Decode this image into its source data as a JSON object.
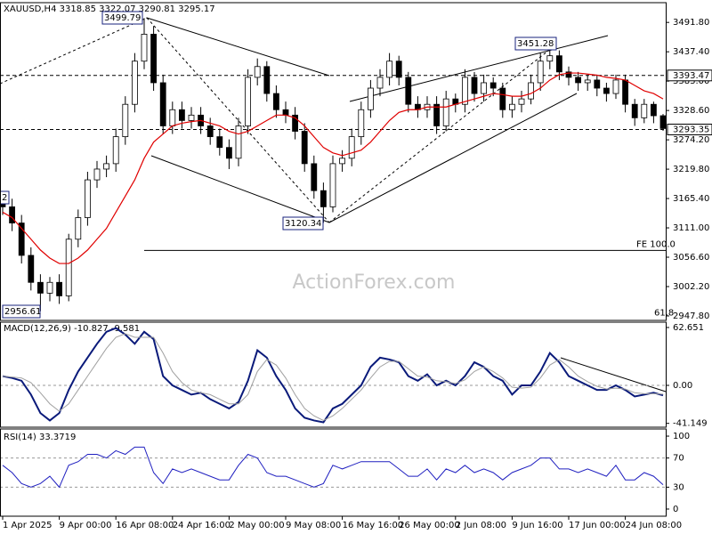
{
  "chart_data": [
    {
      "type": "candlestick",
      "title": "XAUUSD,H4  3318.85 3322.07 3290.81 3295.17",
      "watermark": "ActionForex.com",
      "categories": [
        "1 Apr 2025",
        null,
        null,
        null,
        null,
        null,
        "9 Apr 00:00",
        null,
        null,
        null,
        null,
        null,
        "16 Apr 08:00",
        null,
        null,
        null,
        null,
        null,
        "24 Apr 16:00",
        null,
        null,
        null,
        null,
        null,
        "2 May 00:00",
        null,
        null,
        null,
        null,
        null,
        "9 May 08:00",
        null,
        null,
        null,
        null,
        null,
        "16 May 16:00",
        null,
        null,
        null,
        null,
        null,
        "26 May 00:00",
        null,
        null,
        null,
        null,
        null,
        "2 Jun 08:00",
        null,
        null,
        null,
        null,
        null,
        "9 Jun 16:00",
        null,
        null,
        null,
        null,
        null,
        "17 Jun 00:00",
        null,
        null,
        null,
        null,
        null,
        "24 Jun 08:00",
        null,
        null,
        null,
        null
      ],
      "open": [
        3160,
        3150,
        3120,
        3060,
        3010,
        2990,
        3010,
        2985,
        3090,
        3130,
        3200,
        3220,
        3230,
        3280,
        3340,
        3420,
        3470,
        3380,
        3300,
        3330,
        3310,
        3320,
        3300,
        3280,
        3260,
        3240,
        3300,
        3390,
        3410,
        3360,
        3330,
        3320,
        3290,
        3230,
        3180,
        3150,
        3230,
        3240,
        3280,
        3330,
        3370,
        3390,
        3420,
        3390,
        3340,
        3330,
        3340,
        3300,
        3350,
        3340,
        3390,
        3360,
        3380,
        3370,
        3330,
        3340,
        3350,
        3380,
        3420,
        3430,
        3400,
        3390,
        3380,
        3385,
        3370,
        3360,
        3385,
        3340,
        3315,
        3340,
        3318.85
      ],
      "high": [
        3175,
        3165,
        3135,
        3075,
        3025,
        3020,
        3025,
        3100,
        3145,
        3215,
        3235,
        3245,
        3295,
        3355,
        3435,
        3499.79,
        3485,
        3395,
        3345,
        3345,
        3335,
        3335,
        3315,
        3295,
        3275,
        3315,
        3405,
        3425,
        3420,
        3375,
        3345,
        3335,
        3305,
        3245,
        3195,
        3245,
        3255,
        3295,
        3345,
        3385,
        3405,
        3435,
        3430,
        3400,
        3355,
        3355,
        3355,
        3365,
        3360,
        3405,
        3400,
        3395,
        3390,
        3380,
        3355,
        3365,
        3395,
        3435,
        3451.28,
        3440,
        3410,
        3400,
        3395,
        3395,
        3380,
        3395,
        3395,
        3350,
        3350,
        3345,
        3322.07
      ],
      "low": [
        3135,
        3105,
        3045,
        2995,
        2956.61,
        2975,
        2970,
        2975,
        3075,
        3115,
        3185,
        3205,
        3215,
        3265,
        3325,
        3405,
        3365,
        3285,
        3285,
        3295,
        3295,
        3285,
        3265,
        3245,
        3220,
        3225,
        3285,
        3375,
        3345,
        3315,
        3305,
        3275,
        3215,
        3165,
        3120.34,
        3140,
        3215,
        3225,
        3265,
        3315,
        3355,
        3375,
        3375,
        3325,
        3315,
        3315,
        3285,
        3290,
        3325,
        3325,
        3345,
        3345,
        3355,
        3315,
        3315,
        3325,
        3340,
        3365,
        3405,
        3385,
        3375,
        3365,
        3365,
        3355,
        3345,
        3350,
        3325,
        3300,
        3305,
        3305,
        3290.81
      ],
      "close": [
        3150,
        3120,
        3060,
        3010,
        2990,
        3010,
        2985,
        3090,
        3130,
        3200,
        3220,
        3230,
        3280,
        3340,
        3420,
        3470,
        3380,
        3300,
        3330,
        3310,
        3320,
        3300,
        3280,
        3260,
        3240,
        3300,
        3390,
        3410,
        3360,
        3330,
        3320,
        3290,
        3230,
        3180,
        3150,
        3230,
        3240,
        3280,
        3330,
        3370,
        3390,
        3420,
        3390,
        3340,
        3330,
        3340,
        3300,
        3350,
        3340,
        3390,
        3360,
        3380,
        3370,
        3330,
        3340,
        3350,
        3380,
        3420,
        3430,
        3400,
        3390,
        3380,
        3385,
        3370,
        3360,
        3385,
        3340,
        3315,
        3340,
        3318.85,
        3295.17
      ],
      "ma": {
        "color": "#e00000",
        "values": [
          3140,
          3130,
          3110,
          3090,
          3070,
          3055,
          3045,
          3045,
          3055,
          3070,
          3090,
          3110,
          3140,
          3170,
          3200,
          3240,
          3270,
          3285,
          3300,
          3305,
          3308,
          3310,
          3305,
          3300,
          3290,
          3285,
          3290,
          3300,
          3310,
          3320,
          3320,
          3315,
          3300,
          3280,
          3260,
          3250,
          3245,
          3250,
          3255,
          3270,
          3290,
          3310,
          3325,
          3330,
          3330,
          3335,
          3335,
          3335,
          3340,
          3345,
          3350,
          3355,
          3360,
          3358,
          3355,
          3355,
          3360,
          3370,
          3385,
          3395,
          3398,
          3398,
          3396,
          3394,
          3390,
          3388,
          3385,
          3375,
          3365,
          3360,
          3350
        ]
      },
      "ylim": [
        2939.5,
        3528.4
      ],
      "yticks": [
        {
          "value": 3491.8,
          "label": "3491.80"
        },
        {
          "value": 3437.4,
          "label": "3437.40"
        },
        {
          "value": 3383,
          "label": "3383.00"
        },
        {
          "value": 3328.6,
          "label": "3328.60"
        },
        {
          "value": 3274.2,
          "label": "3274.20"
        },
        {
          "value": 3219.8,
          "label": "3219.80"
        },
        {
          "value": 3165.4,
          "label": "3165.40"
        },
        {
          "value": 3111,
          "label": "3111.00"
        },
        {
          "value": 3056.6,
          "label": "3056.60"
        },
        {
          "value": 3002.2,
          "label": "3002.20"
        },
        {
          "value": 2947.8,
          "label": "2947.80"
        }
      ],
      "levels": [
        3393.47,
        3293.35
      ],
      "price_labels": [
        3499.79,
        3451.28,
        3120.34,
        2956.61,
        2
      ],
      "fib_lines": [
        {
          "label": "FE 100.0",
          "value": 3069.2
        },
        {
          "label": "61.8",
          "value": 2942
        }
      ]
    },
    {
      "type": "line",
      "title": "MACD(12,26,9) -10.827 -9.581",
      "series": [
        {
          "color": "#0a1a7a",
          "values": [
            10,
            8,
            5,
            -10,
            -30,
            -38,
            -30,
            -5,
            15,
            30,
            45,
            58,
            62,
            55,
            45,
            58,
            50,
            10,
            0,
            -5,
            -10,
            -8,
            -15,
            -20,
            -25,
            -18,
            5,
            38,
            30,
            10,
            -5,
            -25,
            -35,
            -38,
            -40,
            -25,
            -20,
            -10,
            0,
            20,
            30,
            28,
            25,
            10,
            5,
            12,
            0,
            5,
            0,
            10,
            25,
            20,
            10,
            5,
            -10,
            0,
            0,
            15,
            35,
            25,
            10,
            5,
            0,
            -5,
            -5,
            0,
            -5,
            -12,
            -10,
            -8,
            -10.827
          ]
        },
        {
          "color": "#a0a0a0",
          "values": [
            10,
            9,
            8,
            3,
            -8,
            -20,
            -28,
            -20,
            -5,
            10,
            25,
            40,
            52,
            56,
            52,
            52,
            52,
            35,
            15,
            3,
            -5,
            -8,
            -10,
            -15,
            -20,
            -20,
            -10,
            15,
            28,
            22,
            8,
            -10,
            -25,
            -33,
            -38,
            -33,
            -25,
            -15,
            -5,
            8,
            20,
            26,
            26,
            18,
            10,
            9,
            5,
            4,
            2,
            6,
            15,
            20,
            15,
            8,
            -2,
            -3,
            -2,
            8,
            22,
            28,
            20,
            10,
            4,
            -1,
            -4,
            -3,
            -4,
            -8,
            -9,
            -9,
            -9.581
          ]
        }
      ],
      "ylim": [
        -45.3,
        68.4
      ],
      "yticks": [
        62.651,
        {
          "value": 0,
          "label": "0.00"
        },
        -41.149
      ]
    },
    {
      "type": "line",
      "title": "RSI(14) 33.3719",
      "series": [
        {
          "color": "#2020c0",
          "values": [
            60,
            50,
            35,
            30,
            35,
            45,
            30,
            60,
            65,
            75,
            75,
            70,
            80,
            75,
            85,
            85,
            50,
            35,
            55,
            50,
            55,
            50,
            45,
            40,
            40,
            60,
            75,
            70,
            50,
            45,
            45,
            40,
            35,
            30,
            35,
            60,
            55,
            60,
            65,
            65,
            65,
            65,
            55,
            45,
            45,
            55,
            40,
            55,
            50,
            60,
            50,
            55,
            50,
            40,
            50,
            55,
            60,
            70,
            70,
            55,
            55,
            50,
            55,
            50,
            45,
            60,
            40,
            40,
            50,
            45,
            33.3719
          ]
        }
      ],
      "ylim": [
        -9.8,
        109.8
      ],
      "yticks": [
        100,
        70,
        30,
        0
      ],
      "levels": [
        70,
        30
      ]
    }
  ]
}
